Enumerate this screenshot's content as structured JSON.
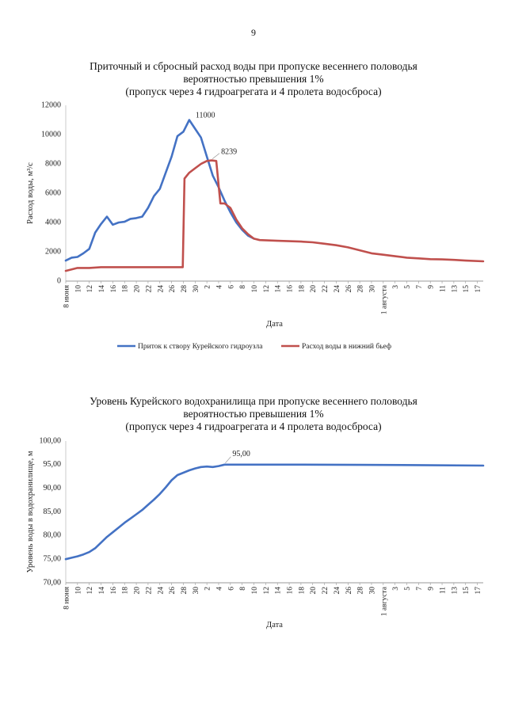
{
  "page_number": "9",
  "chart_data": [
    {
      "type": "line",
      "title": [
        "Приточный и сбросный расход воды при пропуске весеннего половодья",
        "вероятностью превышения 1%",
        "(пропуск через 4 гидроагрегата и 4 пролета водосброса)"
      ],
      "xlabel": "Дата",
      "ylabel": "Расход воды, м³/с",
      "ylim": [
        0,
        12000
      ],
      "yticks": [
        "0",
        "2000",
        "4000",
        "6000",
        "8000",
        "10000",
        "12000"
      ],
      "x_tick_labels": [
        "8 июня",
        "10",
        "12",
        "14",
        "16",
        "18",
        "20",
        "22",
        "24",
        "26",
        "28",
        "30",
        "2",
        "4",
        "6",
        "8",
        "10",
        "12",
        "14",
        "16",
        "18",
        "20",
        "22",
        "24",
        "26",
        "28",
        "30",
        "1 августа",
        "3",
        "5",
        "7",
        "9",
        "11",
        "13",
        "15",
        "17"
      ],
      "x_tick_days": [
        0,
        2,
        4,
        6,
        8,
        10,
        12,
        14,
        16,
        18,
        20,
        22,
        24,
        26,
        28,
        30,
        32,
        34,
        36,
        38,
        40,
        42,
        44,
        46,
        48,
        50,
        52,
        54,
        56,
        58,
        60,
        62,
        64,
        66,
        68,
        70
      ],
      "x_range": [
        0,
        71
      ],
      "grid": false,
      "legend_position": "bottom",
      "series": [
        {
          "name": "Приток к створу Курейского гидроузла",
          "color": "#4472c4",
          "points": [
            [
              0,
              1400
            ],
            [
              1,
              1600
            ],
            [
              2,
              1650
            ],
            [
              3,
              1900
            ],
            [
              4,
              2200
            ],
            [
              5,
              3300
            ],
            [
              6,
              3900
            ],
            [
              7,
              4400
            ],
            [
              8,
              3850
            ],
            [
              9,
              4000
            ],
            [
              10,
              4050
            ],
            [
              11,
              4250
            ],
            [
              12,
              4300
            ],
            [
              13,
              4400
            ],
            [
              14,
              5000
            ],
            [
              15,
              5800
            ],
            [
              16,
              6300
            ],
            [
              17,
              7400
            ],
            [
              18,
              8500
            ],
            [
              19,
              9900
            ],
            [
              20,
              10200
            ],
            [
              21,
              11000
            ],
            [
              22,
              10400
            ],
            [
              23,
              9800
            ],
            [
              24,
              8500
            ],
            [
              25,
              7200
            ],
            [
              26,
              6400
            ],
            [
              27,
              5500
            ],
            [
              28,
              4700
            ],
            [
              29,
              4000
            ],
            [
              30,
              3500
            ],
            [
              31,
              3100
            ],
            [
              32,
              2900
            ]
          ]
        },
        {
          "name": "Расход воды в нижний бьеф",
          "color": "#c0504d",
          "points": [
            [
              0,
              700
            ],
            [
              1,
              800
            ],
            [
              2,
              900
            ],
            [
              4,
              900
            ],
            [
              6,
              950
            ],
            [
              10,
              950
            ],
            [
              16,
              950
            ],
            [
              19,
              950
            ],
            [
              19.9,
              950
            ],
            [
              20.2,
              7000
            ],
            [
              21,
              7400
            ],
            [
              22,
              7700
            ],
            [
              23,
              8000
            ],
            [
              24,
              8200
            ],
            [
              24.8,
              8239
            ],
            [
              25.6,
              8200
            ],
            [
              26.3,
              5300
            ],
            [
              27,
              5300
            ],
            [
              28,
              5000
            ],
            [
              29,
              4200
            ],
            [
              30,
              3600
            ],
            [
              31,
              3200
            ],
            [
              32,
              2900
            ],
            [
              33,
              2800
            ],
            [
              36,
              2750
            ],
            [
              40,
              2700
            ],
            [
              42,
              2650
            ],
            [
              44,
              2550
            ],
            [
              46,
              2450
            ],
            [
              48,
              2300
            ],
            [
              50,
              2100
            ],
            [
              52,
              1900
            ],
            [
              54,
              1800
            ],
            [
              56,
              1700
            ],
            [
              58,
              1600
            ],
            [
              60,
              1550
            ],
            [
              62,
              1500
            ],
            [
              64,
              1480
            ],
            [
              66,
              1450
            ],
            [
              68,
              1400
            ],
            [
              71,
              1350
            ]
          ]
        }
      ],
      "annotations": [
        {
          "text": "11000",
          "x": 21,
          "y": 11000,
          "series": 0
        },
        {
          "text": "8239",
          "x": 24.8,
          "y": 8239,
          "series": 1
        }
      ]
    },
    {
      "type": "line",
      "title": [
        "Уровень Курейского водохранилища при пропуске весеннего половодья",
        "вероятностью превышения 1%",
        "(пропуск через 4 гидроагрегата и 4 пролета водосброса)"
      ],
      "xlabel": "Дата",
      "ylabel": "Уровень воды в водохранилище, м",
      "ylim": [
        70,
        100
      ],
      "yticks": [
        "70,00",
        "75,00",
        "80,00",
        "85,00",
        "90,00",
        "95,00",
        "100,00"
      ],
      "x_tick_labels": [
        "8 июня",
        "10",
        "12",
        "14",
        "16",
        "18",
        "20",
        "22",
        "24",
        "26",
        "28",
        "30",
        "2",
        "4",
        "6",
        "8",
        "10",
        "12",
        "14",
        "16",
        "18",
        "20",
        "22",
        "24",
        "26",
        "28",
        "30",
        "1 августа",
        "3",
        "5",
        "7",
        "9",
        "11",
        "13",
        "15",
        "17"
      ],
      "x_tick_days": [
        0,
        2,
        4,
        6,
        8,
        10,
        12,
        14,
        16,
        18,
        20,
        22,
        24,
        26,
        28,
        30,
        32,
        34,
        36,
        38,
        40,
        42,
        44,
        46,
        48,
        50,
        52,
        54,
        56,
        58,
        60,
        62,
        64,
        66,
        68,
        70
      ],
      "x_range": [
        0,
        71
      ],
      "grid": false,
      "series": [
        {
          "color": "#4472c4",
          "points": [
            [
              0,
              75.0
            ],
            [
              1,
              75.3
            ],
            [
              2,
              75.6
            ],
            [
              3,
              76.0
            ],
            [
              4,
              76.5
            ],
            [
              5,
              77.3
            ],
            [
              6,
              78.5
            ],
            [
              7,
              79.7
            ],
            [
              8,
              80.7
            ],
            [
              9,
              81.7
            ],
            [
              10,
              82.7
            ],
            [
              11,
              83.6
            ],
            [
              12,
              84.5
            ],
            [
              13,
              85.4
            ],
            [
              14,
              86.5
            ],
            [
              15,
              87.6
            ],
            [
              16,
              88.8
            ],
            [
              17,
              90.2
            ],
            [
              18,
              91.7
            ],
            [
              19,
              92.8
            ],
            [
              20,
              93.3
            ],
            [
              21,
              93.8
            ],
            [
              22,
              94.2
            ],
            [
              23,
              94.5
            ],
            [
              24,
              94.6
            ],
            [
              25,
              94.5
            ],
            [
              26,
              94.7
            ],
            [
              27,
              95.0
            ],
            [
              30,
              95.0
            ],
            [
              40,
              95.0
            ],
            [
              50,
              94.95
            ],
            [
              60,
              94.9
            ],
            [
              71,
              94.8
            ]
          ]
        }
      ],
      "annotations": [
        {
          "text": "95,00",
          "x": 27,
          "y": 95.0,
          "series": 0
        }
      ]
    }
  ]
}
